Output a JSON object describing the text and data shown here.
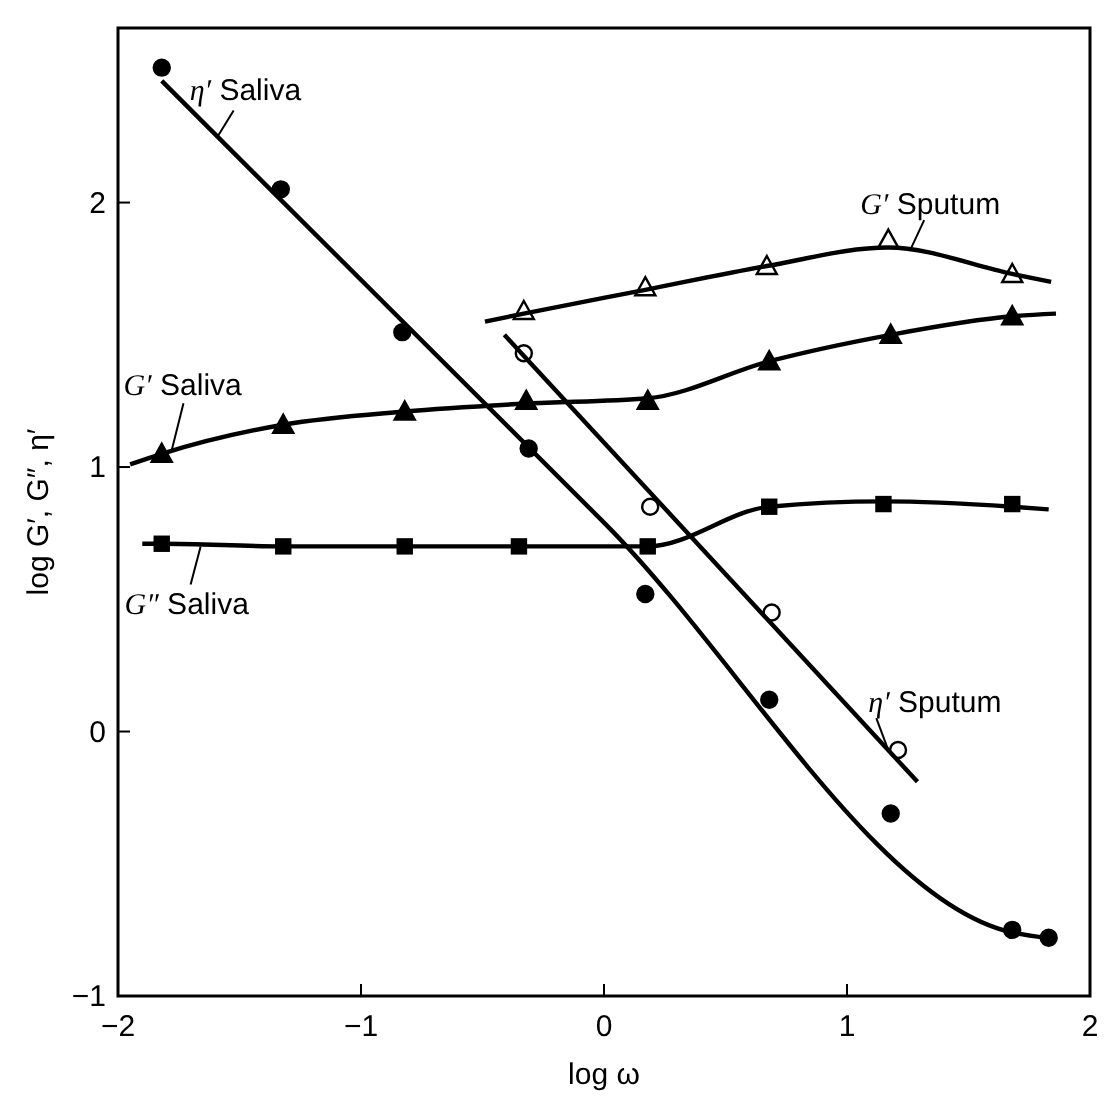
{
  "chart_data": {
    "type": "scatter",
    "xlabel": "log ω",
    "ylabel": "log G′, G″, η′",
    "xlim": [
      -2,
      2
    ],
    "ylim": [
      -1,
      2.66
    ],
    "xticks": [
      -2,
      -1,
      0,
      1,
      2
    ],
    "yticks": [
      -1,
      0,
      1,
      2
    ],
    "grid": false,
    "series": [
      {
        "marker": "circle",
        "color": "#000000",
        "x": [
          -1.82,
          -1.33,
          -0.83,
          -0.31,
          0.17,
          0.68,
          1.18,
          1.68,
          1.83
        ],
        "values": [
          2.51,
          2.05,
          1.51,
          1.07,
          0.52,
          0.12,
          -0.31,
          -0.75,
          -0.78
        ]
      },
      {
        "type": "line",
        "marker": "none",
        "color": "#000000",
        "x": [
          -1.82,
          0,
          1.68,
          1.82
        ],
        "values": [
          2.46,
          0.79,
          -0.76,
          -0.78
        ]
      },
      {
        "marker": "triangle",
        "color": "#000000",
        "x": [
          -1.82,
          -1.32,
          -0.82,
          -0.32,
          0.18,
          0.68,
          1.18,
          1.68
        ],
        "values": [
          1.05,
          1.16,
          1.21,
          1.25,
          1.25,
          1.4,
          1.5,
          1.57
        ]
      },
      {
        "type": "line",
        "marker": "none",
        "color": "#000000",
        "x": [
          -1.95,
          -1.82,
          -1.32,
          -0.82,
          -0.32,
          0.18,
          0.68,
          1.18,
          1.68,
          1.86
        ],
        "values": [
          1.01,
          1.05,
          1.16,
          1.21,
          1.24,
          1.26,
          1.4,
          1.5,
          1.57,
          1.58
        ]
      },
      {
        "marker": "square",
        "color": "#000000",
        "x": [
          -1.82,
          -1.32,
          -0.82,
          -0.35,
          0.18,
          0.68,
          1.15,
          1.68
        ],
        "values": [
          0.71,
          0.7,
          0.7,
          0.7,
          0.7,
          0.85,
          0.86,
          0.86
        ]
      },
      {
        "type": "line",
        "marker": "none",
        "color": "#000000",
        "x": [
          -1.9,
          -1.82,
          -1.32,
          -0.82,
          -0.35,
          0.18,
          0.68,
          1.15,
          1.68,
          1.83
        ],
        "values": [
          0.71,
          0.71,
          0.7,
          0.7,
          0.7,
          0.7,
          0.85,
          0.87,
          0.85,
          0.84
        ]
      },
      {
        "marker": "triangle",
        "color": "#ffffff",
        "x": [
          -0.33,
          0.17,
          0.67,
          1.17,
          1.68
        ],
        "values": [
          1.59,
          1.68,
          1.76,
          1.86,
          1.73
        ]
      },
      {
        "type": "line",
        "marker": "none",
        "color": "#000000",
        "x": [
          -0.49,
          -0.33,
          0.17,
          0.67,
          1.17,
          1.68,
          1.84
        ],
        "values": [
          1.55,
          1.58,
          1.67,
          1.76,
          1.83,
          1.73,
          1.7
        ]
      },
      {
        "marker": "circle",
        "color": "#ffffff",
        "x": [
          -0.33,
          0.19,
          0.69,
          1.21
        ],
        "values": [
          1.43,
          0.85,
          0.45,
          -0.07
        ]
      },
      {
        "type": "line",
        "marker": "none",
        "color": "#000000",
        "x": [
          -0.41,
          1.29
        ],
        "values": [
          1.5,
          -0.19
        ]
      }
    ],
    "annotations": [
      {
        "text": "η′ Saliva",
        "x": -1.59,
        "y": 2.25
      },
      {
        "text": "G′ Sputum",
        "x": 1.26,
        "y": 1.82
      },
      {
        "text": "G′ Saliva",
        "x": -1.78,
        "y": 1.06
      },
      {
        "text": "G″ Saliva",
        "x": -1.66,
        "y": 0.7
      },
      {
        "text": "η′ Sputum",
        "x": 1.17,
        "y": -0.07
      }
    ]
  }
}
